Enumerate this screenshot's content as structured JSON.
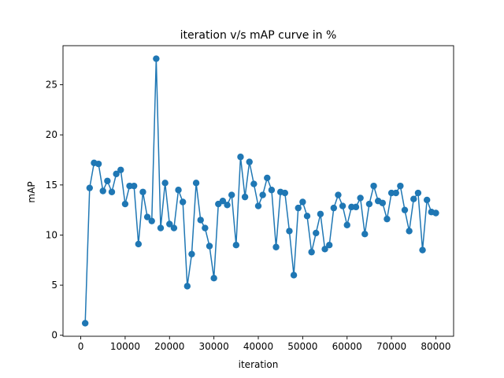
{
  "chart_data": {
    "type": "line",
    "title": "iteration v/s mAP curve in %",
    "xlabel": "iteration",
    "ylabel": "mAP",
    "xlim": [
      -4000,
      84000
    ],
    "ylim": [
      -0.1,
      28.9
    ],
    "grid": false,
    "color": "#1f77b4",
    "marker": "circle",
    "xticks": [
      0,
      10000,
      20000,
      30000,
      40000,
      50000,
      60000,
      70000,
      80000
    ],
    "xtick_labels": [
      "0",
      "10000",
      "20000",
      "30000",
      "40000",
      "50000",
      "60000",
      "70000",
      "80000"
    ],
    "yticks": [
      0,
      5,
      10,
      15,
      20,
      25
    ],
    "ytick_labels": [
      "0",
      "5",
      "10",
      "15",
      "20",
      "25"
    ],
    "series": [
      {
        "x": [
          1000,
          2000,
          3000,
          4000,
          5000,
          6000,
          7000,
          8000,
          9000,
          10000,
          11000,
          12000,
          13000,
          14000,
          15000,
          16000,
          17000,
          18000,
          19000,
          20000,
          21000,
          22000,
          23000,
          24000,
          25000,
          26000,
          27000,
          28000,
          29000,
          30000,
          31000,
          32000,
          33000,
          34000,
          35000,
          36000,
          37000,
          38000,
          39000,
          40000,
          41000,
          42000,
          43000,
          44000,
          45000,
          46000,
          47000,
          48000,
          49000,
          50000,
          51000,
          52000,
          53000,
          54000,
          55000,
          56000,
          57000,
          58000,
          59000,
          60000,
          61000,
          62000,
          63000,
          64000,
          65000,
          66000,
          67000,
          68000,
          69000,
          70000,
          71000,
          72000,
          73000,
          74000,
          75000,
          76000,
          77000,
          78000,
          79000,
          80000
        ],
        "y": [
          1.2,
          14.7,
          17.2,
          17.1,
          14.4,
          15.4,
          14.3,
          16.1,
          16.5,
          13.1,
          14.9,
          14.9,
          9.1,
          14.3,
          11.8,
          11.4,
          27.6,
          10.7,
          15.2,
          11.1,
          10.7,
          14.5,
          13.3,
          4.9,
          8.1,
          15.2,
          11.5,
          10.7,
          8.9,
          5.7,
          13.1,
          13.4,
          13.0,
          14.0,
          9.0,
          17.8,
          13.8,
          17.3,
          15.1,
          12.9,
          14.0,
          15.7,
          14.5,
          8.8,
          14.3,
          14.2,
          10.4,
          6.0,
          12.7,
          13.3,
          11.9,
          8.3,
          10.2,
          12.1,
          8.6,
          9.0,
          12.7,
          14.0,
          12.9,
          11.0,
          12.8,
          12.8,
          13.7,
          10.1,
          13.1,
          14.9,
          13.4,
          13.2,
          11.6,
          14.2,
          14.2,
          14.9,
          12.5,
          10.4,
          13.6,
          14.2,
          8.5,
          13.5,
          12.3,
          12.2
        ]
      }
    ]
  }
}
